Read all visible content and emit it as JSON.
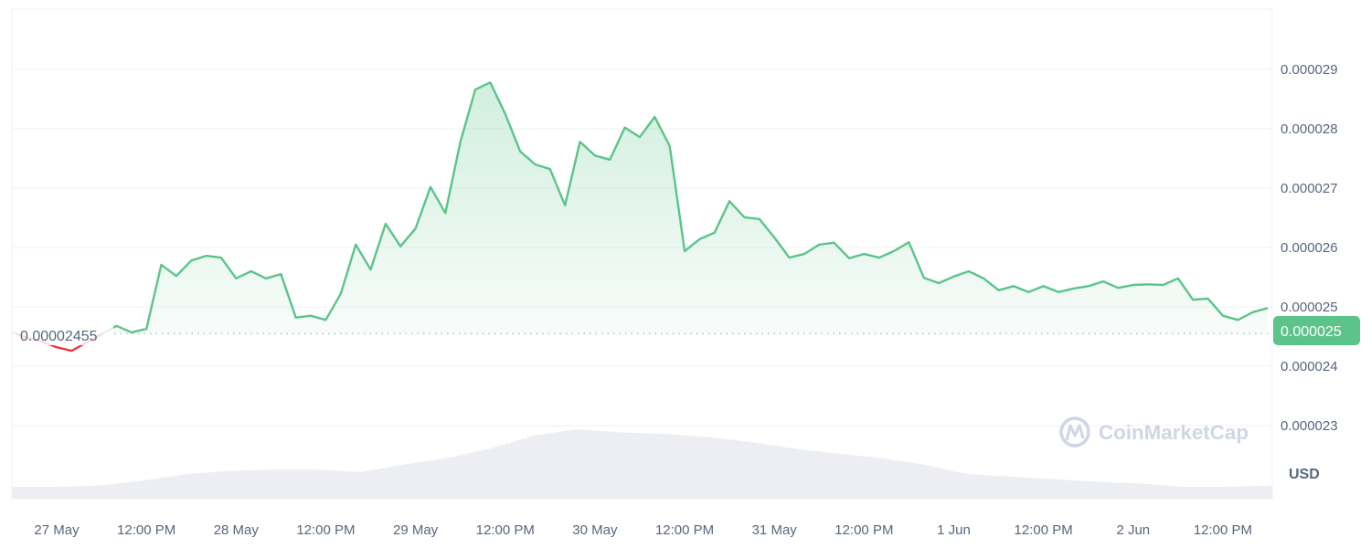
{
  "chart_data": {
    "type": "line",
    "title": "",
    "xlabel": "",
    "ylabel": "",
    "unit": "USD",
    "watermark": "CoinMarketCap",
    "baseline_price": 2.455e-05,
    "baseline_label": "0.00002455",
    "current_price_label": "0.000025",
    "ylim": [
      2.245e-05,
      3.01e-05
    ],
    "y_ticks": [
      "0.000029",
      "0.000028",
      "0.000027",
      "0.000026",
      "0.000025",
      "0.000024",
      "0.000023"
    ],
    "x_ticks": [
      "27 May",
      "12:00 PM",
      "28 May",
      "12:00 PM",
      "29 May",
      "12:00 PM",
      "30 May",
      "12:00 PM",
      "31 May",
      "12:00 PM",
      "1 Jun",
      "12:00 PM",
      "2 Jun",
      "12:00 PM"
    ],
    "grid": true,
    "colors": {
      "up": "#5cc48a",
      "down": "#ea3943",
      "grid": "#eff2f5",
      "text": "#58667e",
      "volume": "#eceef3",
      "badge": "#5cc48a"
    },
    "x": [
      "26 May 18:00",
      "26 May 20:00",
      "26 May 22:00",
      "27 May 00:00",
      "27 May 02:00",
      "27 May 04:00",
      "27 May 06:00",
      "27 May 08:00",
      "27 May 10:00",
      "27 May 12:00",
      "27 May 14:00",
      "27 May 16:00",
      "27 May 18:00",
      "27 May 20:00",
      "27 May 22:00",
      "28 May 00:00",
      "28 May 02:00",
      "28 May 04:00",
      "28 May 06:00",
      "28 May 08:00",
      "28 May 10:00",
      "28 May 12:00",
      "28 May 14:00",
      "28 May 16:00",
      "28 May 18:00",
      "28 May 20:00",
      "28 May 22:00",
      "29 May 00:00",
      "29 May 02:00",
      "29 May 04:00",
      "29 May 06:00",
      "29 May 08:00",
      "29 May 10:00",
      "29 May 12:00",
      "29 May 14:00",
      "29 May 16:00",
      "29 May 18:00",
      "29 May 20:00",
      "29 May 22:00",
      "30 May 00:00",
      "30 May 02:00",
      "30 May 04:00",
      "30 May 06:00",
      "30 May 08:00",
      "30 May 10:00",
      "30 May 12:00",
      "30 May 14:00",
      "30 May 16:00",
      "30 May 18:00",
      "30 May 20:00",
      "30 May 22:00",
      "31 May 00:00",
      "31 May 02:00",
      "31 May 04:00",
      "31 May 06:00",
      "31 May 08:00",
      "31 May 10:00",
      "31 May 12:00",
      "31 May 14:00",
      "31 May 16:00",
      "31 May 18:00",
      "31 May 20:00",
      "31 May 22:00",
      "1 Jun 00:00",
      "1 Jun 02:00",
      "1 Jun 04:00",
      "1 Jun 06:00",
      "1 Jun 08:00",
      "1 Jun 10:00",
      "1 Jun 12:00",
      "1 Jun 14:00",
      "1 Jun 16:00",
      "1 Jun 18:00",
      "1 Jun 20:00",
      "1 Jun 22:00",
      "2 Jun 00:00",
      "2 Jun 02:00",
      "2 Jun 04:00",
      "2 Jun 06:00",
      "2 Jun 08:00",
      "2 Jun 10:00",
      "2 Jun 12:00",
      "2 Jun 14:00",
      "2 Jun 16:00",
      "2 Jun 18:00"
    ],
    "series": [
      {
        "values": [
          2.457e-05,
          2.448e-05,
          2.442e-05,
          2.432e-05,
          2.426e-05,
          2.44e-05,
          2.454e-05,
          2.468e-05,
          2.457e-05,
          2.463e-05,
          2.571e-05,
          2.552e-05,
          2.578e-05,
          2.586e-05,
          2.583e-05,
          2.548e-05,
          2.56e-05,
          2.548e-05,
          2.555e-05,
          2.482e-05,
          2.485e-05,
          2.478e-05,
          2.522e-05,
          2.605e-05,
          2.563e-05,
          2.64e-05,
          2.602e-05,
          2.632e-05,
          2.702e-05,
          2.658e-05,
          2.778e-05,
          2.866e-05,
          2.878e-05,
          2.825e-05,
          2.762e-05,
          2.74e-05,
          2.732e-05,
          2.671e-05,
          2.778e-05,
          2.755e-05,
          2.748e-05,
          2.802e-05,
          2.786e-05,
          2.82e-05,
          2.771e-05,
          2.594e-05,
          2.614e-05,
          2.625e-05,
          2.678e-05,
          2.651e-05,
          2.648e-05,
          2.617e-05,
          2.583e-05,
          2.589e-05,
          2.605e-05,
          2.608e-05,
          2.582e-05,
          2.589e-05,
          2.583e-05,
          2.594e-05,
          2.609e-05,
          2.549e-05,
          2.54e-05,
          2.551e-05,
          2.56e-05,
          2.548e-05,
          2.528e-05,
          2.535e-05,
          2.525e-05,
          2.535e-05,
          2.525e-05,
          2.531e-05,
          2.535e-05,
          2.543e-05,
          2.532e-05,
          2.537e-05,
          2.538e-05,
          2.537e-05,
          2.548e-05,
          2.512e-05,
          2.514e-05,
          2.485e-05,
          2.478e-05,
          2.491e-05,
          2.498e-05
        ]
      }
    ],
    "volume_relative": [
      0.1,
      0.1,
      0.12,
      0.2,
      0.3,
      0.35,
      0.37,
      0.37,
      0.33,
      0.45,
      0.55,
      0.7,
      0.9,
      1.0,
      0.95,
      0.93,
      0.88,
      0.8,
      0.7,
      0.62,
      0.55,
      0.45,
      0.3,
      0.26,
      0.22,
      0.18,
      0.15,
      0.1,
      0.1,
      0.12
    ]
  }
}
